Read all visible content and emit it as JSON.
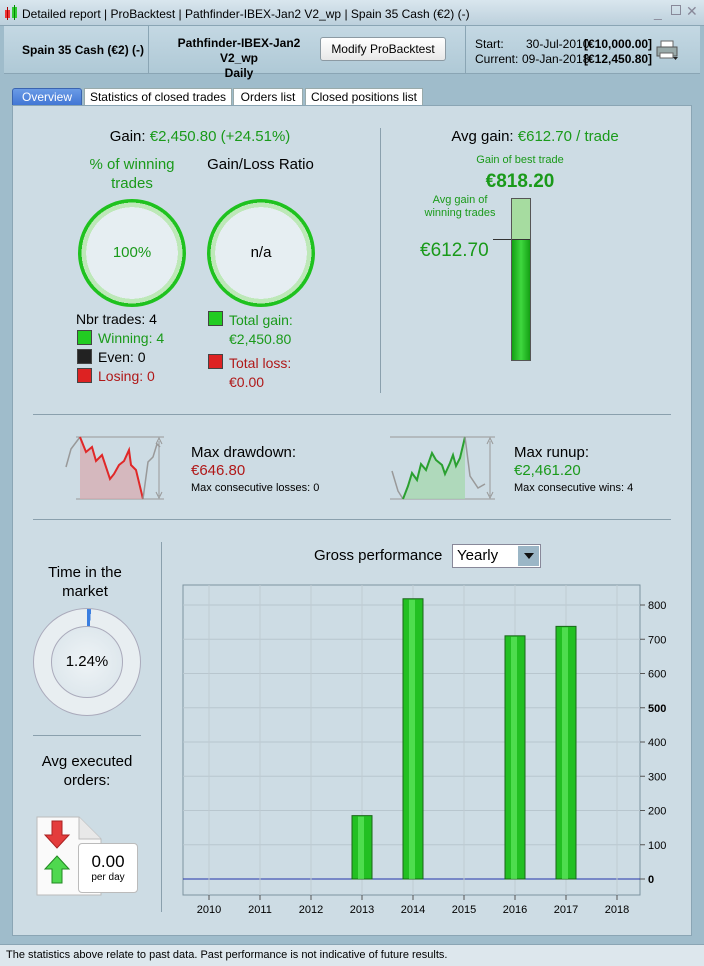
{
  "window": {
    "title_parts": [
      "Detailed report",
      "ProBacktest",
      "Pathfinder-IBEX-Jan2 V2_wp",
      "Spain 35 Cash (€2) (-)"
    ]
  },
  "header": {
    "instrument": "Spain 35 Cash (€2) (-)",
    "strategy": "Pathfinder-IBEX-Jan2 V2_wp",
    "timeframe": "Daily",
    "modify_button": "Modify ProBacktest",
    "start_label": "Start:",
    "start_date": "30-Jul-2010",
    "start_value": "[€10,000.00]",
    "current_label": "Current:",
    "current_date": "09-Jan-2018",
    "current_value": "[€12,450.80]"
  },
  "tabs": [
    {
      "label": "Overview",
      "active": true
    },
    {
      "label": "Statistics of closed trades"
    },
    {
      "label": "Orders list"
    },
    {
      "label": "Closed positions list"
    }
  ],
  "overview": {
    "gain_label": "Gain:",
    "gain_value": "€2,450.80 (+24.51%)",
    "winning_title": "% of winning trades",
    "winning_pct": "100%",
    "ratio_title": "Gain/Loss Ratio",
    "ratio_value": "n/a",
    "nbr_trades": "Nbr trades: 4",
    "winning": "Winning: 4",
    "even": "Even: 0",
    "losing": "Losing: 0",
    "total_gain_label": "Total gain:",
    "total_gain": "€2,450.80",
    "total_loss_label": "Total loss:",
    "total_loss": "€0.00",
    "avg_gain_label": "Avg gain:",
    "avg_gain_value": "€612.70 / trade",
    "best_trade_label": "Gain of best trade",
    "best_trade": "€818.20",
    "avg_winning_label": "Avg gain of winning trades",
    "avg_winning": "€612.70",
    "avg_fraction": 0.749,
    "drawdown_label": "Max drawdown:",
    "drawdown": "€646.80",
    "max_losses": "Max consecutive losses: 0",
    "runup_label": "Max runup:",
    "runup": "€2,461.20",
    "max_wins": "Max consecutive wins: 4",
    "time_label": "Time in the market",
    "time_value": "1.24%",
    "time_fraction": 0.0124,
    "orders_label": "Avg executed orders:",
    "orders_value": "0.00",
    "orders_unit": "per day",
    "perf_label": "Gross performance",
    "perf_select": "Yearly"
  },
  "chart_data": {
    "type": "bar",
    "title": "Gross performance",
    "categories": [
      "2010",
      "2011",
      "2012",
      "2013",
      "2014",
      "2015",
      "2016",
      "2017",
      "2018"
    ],
    "values": [
      0,
      0,
      0,
      185,
      818.2,
      0,
      710,
      737.6,
      0
    ],
    "yticks": [
      "0",
      "100",
      "200",
      "300",
      "400",
      "500",
      "600",
      "700",
      "800"
    ],
    "ylim": [
      -50,
      870
    ],
    "bar_color": "#22c022"
  },
  "footer": "The statistics above relate to past data. Past performance is not indicative of future results."
}
